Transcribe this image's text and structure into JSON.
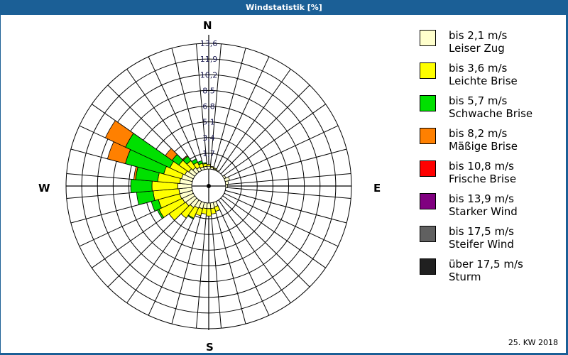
{
  "window": {
    "title": "Windstatistik [%]"
  },
  "directions": {
    "n": "N",
    "e": "E",
    "s": "S",
    "w": "W"
  },
  "footer": {
    "period": "25. KW 2018"
  },
  "legend": [
    {
      "speed": "bis 2,1 m/s",
      "name": "Leiser Zug",
      "color": "#ffffcc"
    },
    {
      "speed": "bis 3,6 m/s",
      "name": "Leichte Brise",
      "color": "#ffff00"
    },
    {
      "speed": "bis 5,7 m/s",
      "name": "Schwache Brise",
      "color": "#00e000"
    },
    {
      "speed": "bis 8,2 m/s",
      "name": "Mäßige Brise",
      "color": "#ff8000"
    },
    {
      "speed": "bis 10,8 m/s",
      "name": "Frische Brise",
      "color": "#ff0000"
    },
    {
      "speed": "bis 13,9 m/s",
      "name": "Starker Wind",
      "color": "#800080"
    },
    {
      "speed": "bis 17,5 m/s",
      "name": "Steifer Wind",
      "color": "#606060"
    },
    {
      "speed": "über 17,5 m/s",
      "name": "Sturm",
      "color": "#202020"
    }
  ],
  "chart_data": {
    "type": "windrose",
    "title": "Windstatistik [%]",
    "unit": "%",
    "radial_ticks": [
      1.7,
      3.4,
      5.1,
      6.8,
      8.5,
      10.2,
      11.9,
      13.6
    ],
    "rmax": 13.6,
    "sector_width_deg": 10,
    "series_names": [
      "bis 2,1 m/s",
      "bis 3,6 m/s",
      "bis 5,7 m/s",
      "bis 8,2 m/s",
      "bis 10,8 m/s",
      "bis 13,9 m/s",
      "bis 17,5 m/s",
      "über 17,5 m/s"
    ],
    "sectors": [
      {
        "dir": 0,
        "values": [
          0.3,
          0.2,
          0,
          0,
          0,
          0,
          0,
          0
        ]
      },
      {
        "dir": 10,
        "values": [
          0.2,
          0.1,
          0,
          0,
          0,
          0,
          0,
          0
        ]
      },
      {
        "dir": 20,
        "values": [
          0.1,
          0.1,
          0,
          0,
          0,
          0,
          0,
          0
        ]
      },
      {
        "dir": 30,
        "values": [
          0.1,
          0,
          0,
          0,
          0,
          0,
          0,
          0
        ]
      },
      {
        "dir": 60,
        "values": [
          0.2,
          0,
          0,
          0,
          0,
          0,
          0,
          0
        ]
      },
      {
        "dir": 70,
        "values": [
          0.5,
          0,
          0,
          0,
          0,
          0,
          0,
          0
        ]
      },
      {
        "dir": 80,
        "values": [
          0.3,
          0,
          0,
          0,
          0,
          0,
          0,
          0
        ]
      },
      {
        "dir": 90,
        "values": [
          0.2,
          0,
          0,
          0,
          0,
          0,
          0,
          0
        ]
      },
      {
        "dir": 160,
        "values": [
          0.5,
          0.5,
          0,
          0,
          0,
          0,
          0,
          0
        ]
      },
      {
        "dir": 170,
        "values": [
          0.6,
          0.6,
          0,
          0,
          0,
          0,
          0,
          0
        ]
      },
      {
        "dir": 180,
        "values": [
          0.6,
          0.8,
          0,
          0,
          0,
          0,
          0,
          0
        ]
      },
      {
        "dir": 190,
        "values": [
          0.6,
          0.6,
          0,
          0,
          0,
          0,
          0,
          0
        ]
      },
      {
        "dir": 200,
        "values": [
          0.7,
          0.8,
          0,
          0,
          0,
          0,
          0,
          0
        ]
      },
      {
        "dir": 210,
        "values": [
          0.8,
          1.2,
          0.1,
          0,
          0,
          0,
          0,
          0
        ]
      },
      {
        "dir": 220,
        "values": [
          1.0,
          1.4,
          0,
          0,
          0,
          0,
          0,
          0
        ]
      },
      {
        "dir": 230,
        "values": [
          1.2,
          2.2,
          0,
          0,
          0,
          0,
          0,
          0
        ]
      },
      {
        "dir": 240,
        "values": [
          1.3,
          2.8,
          0.2,
          0,
          0,
          0,
          0,
          0
        ]
      },
      {
        "dir": 250,
        "values": [
          1.4,
          2.4,
          0.8,
          0,
          0,
          0,
          0,
          0
        ]
      },
      {
        "dir": 260,
        "values": [
          1.4,
          2.8,
          1.8,
          0,
          0,
          0,
          0,
          0
        ]
      },
      {
        "dir": 270,
        "values": [
          1.5,
          2.8,
          2.3,
          0,
          0,
          0,
          0,
          0
        ]
      },
      {
        "dir": 280,
        "values": [
          1.3,
          2.4,
          2.4,
          0.2,
          0,
          0,
          0,
          0
        ]
      },
      {
        "dir": 290,
        "values": [
          1.2,
          2.0,
          4.3,
          2.0,
          0,
          0,
          0,
          0
        ]
      },
      {
        "dir": 300,
        "values": [
          1.0,
          1.8,
          5.3,
          2.4,
          0,
          0,
          0,
          0
        ]
      },
      {
        "dir": 310,
        "values": [
          0.8,
          1.3,
          0.9,
          0.9,
          0,
          0,
          0,
          0
        ]
      },
      {
        "dir": 320,
        "values": [
          0.6,
          0.9,
          0.6,
          0.1,
          0,
          0,
          0,
          0
        ]
      },
      {
        "dir": 330,
        "values": [
          0.4,
          0.6,
          0.4,
          0,
          0,
          0,
          0,
          0
        ]
      },
      {
        "dir": 340,
        "values": [
          0.3,
          0.4,
          0.3,
          0,
          0,
          0,
          0,
          0
        ]
      },
      {
        "dir": 350,
        "values": [
          0.3,
          0.3,
          0.1,
          0,
          0,
          0,
          0,
          0
        ]
      }
    ]
  }
}
